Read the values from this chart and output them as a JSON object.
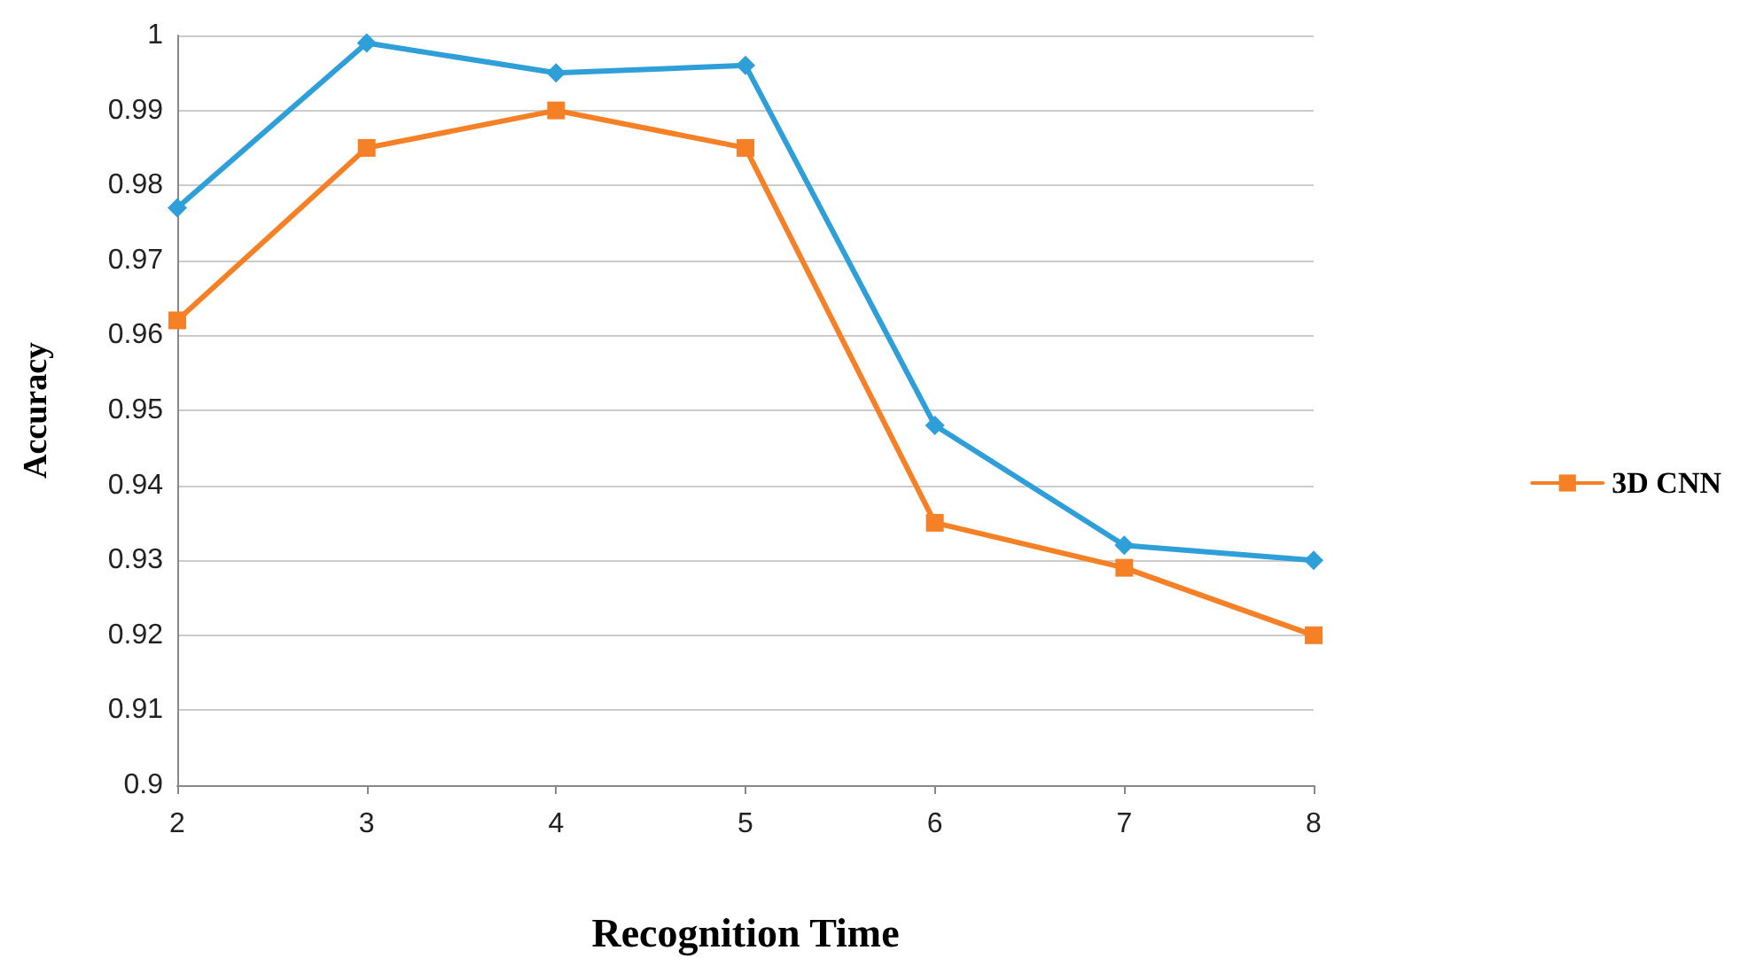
{
  "chart_data": {
    "type": "line",
    "xlabel": "Recognition Time",
    "ylabel": "Accuracy",
    "x": [
      2,
      3,
      4,
      5,
      6,
      7,
      8
    ],
    "series": [
      {
        "color": "#2e9fd9",
        "marker": "diamond",
        "values": [
          0.977,
          0.999,
          0.995,
          0.996,
          0.948,
          0.932,
          0.93
        ]
      },
      {
        "name": "3D CNN",
        "color": "#f58025",
        "marker": "square",
        "values": [
          0.962,
          0.985,
          0.99,
          0.985,
          0.935,
          0.929,
          0.92
        ]
      }
    ],
    "xlim": [
      2,
      8
    ],
    "xticks": [
      2,
      3,
      4,
      5,
      6,
      7,
      8
    ],
    "ylim": [
      0.9,
      1
    ],
    "yticks": [
      0.9,
      0.91,
      0.92,
      0.93,
      0.94,
      0.95,
      0.96,
      0.97,
      0.98,
      0.99,
      1
    ],
    "grid": "y",
    "legend": "right",
    "line_style": "solid"
  }
}
